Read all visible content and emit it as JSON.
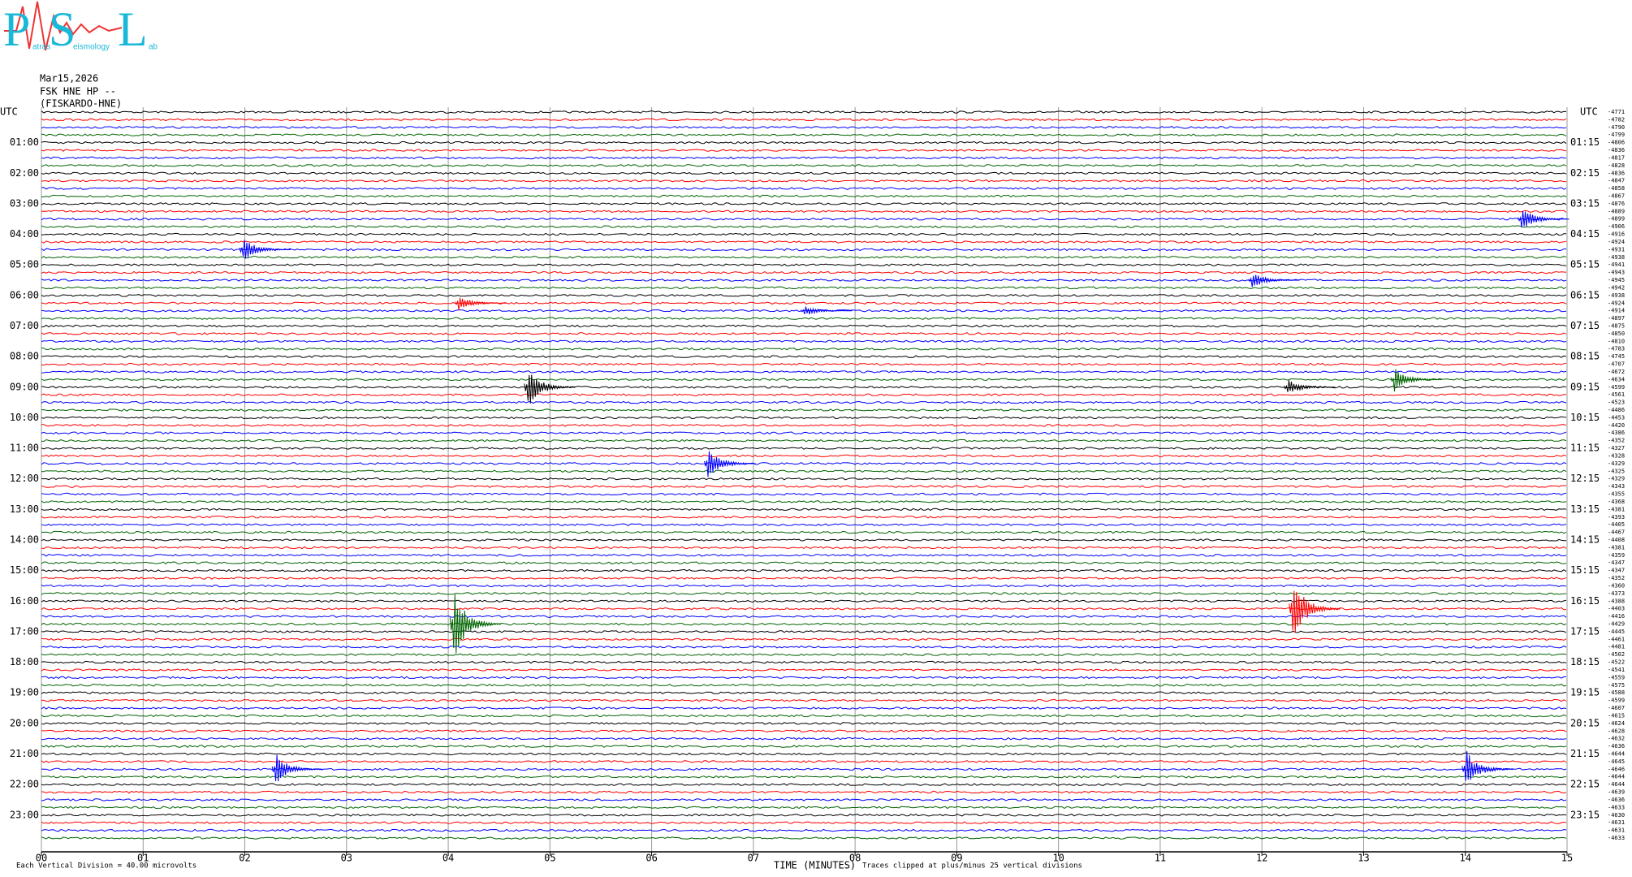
{
  "logo": {
    "letters": [
      "P",
      "S",
      "L"
    ],
    "words": [
      "atras",
      "eismology",
      "ab"
    ]
  },
  "chart_data": {
    "type": "helicorder",
    "header": [
      "Mar15,2026",
      "FSK HNE HP --",
      "(FISKARDO-HNE)"
    ],
    "xlabel": "TIME (MINUTES)",
    "scale_note": "Each Vertical Division =   40.00 microvolts",
    "clip_note": "Traces clipped at plus/minus 25 vertical divisions",
    "xlim": [
      0,
      15
    ],
    "xticks": [
      {
        "value": 0,
        "label": "00"
      },
      {
        "value": 1,
        "label": "01"
      },
      {
        "value": 2,
        "label": "02"
      },
      {
        "value": 3,
        "label": "03"
      },
      {
        "value": 4,
        "label": "04"
      },
      {
        "value": 5,
        "label": "05"
      },
      {
        "value": 6,
        "label": "06"
      },
      {
        "value": 7,
        "label": "07"
      },
      {
        "value": 8,
        "label": "08"
      },
      {
        "value": 9,
        "label": "09"
      },
      {
        "value": 10,
        "label": "10"
      },
      {
        "value": 11,
        "label": "11"
      },
      {
        "value": 12,
        "label": "12"
      },
      {
        "value": 13,
        "label": "13"
      },
      {
        "value": 14,
        "label": "14"
      },
      {
        "value": 15,
        "label": "15"
      }
    ],
    "grid": true,
    "trace_colors": [
      "#000000",
      "#ff0000",
      "#0000ff",
      "#006400"
    ],
    "left_labels": [
      "UTC",
      "01:00",
      "02:00",
      "03:00",
      "04:00",
      "05:00",
      "06:00",
      "07:00",
      "08:00",
      "09:00",
      "10:00",
      "11:00",
      "12:00",
      "13:00",
      "14:00",
      "15:00",
      "16:00",
      "17:00",
      "18:00",
      "19:00",
      "20:00",
      "21:00",
      "22:00",
      "23:00"
    ],
    "right_labels": [
      "UTC",
      "01:15",
      "02:15",
      "03:15",
      "04:15",
      "05:15",
      "06:15",
      "07:15",
      "08:15",
      "09:15",
      "10:15",
      "11:15",
      "12:15",
      "13:15",
      "14:15",
      "15:15",
      "16:15",
      "17:15",
      "18:15",
      "19:15",
      "20:15",
      "21:15",
      "22:15",
      "23:15"
    ],
    "offsets": [
      -4771,
      -4782,
      -4790,
      -4799,
      -4806,
      -4836,
      -4817,
      -4828,
      -4836,
      -4847,
      -4858,
      -4867,
      -4876,
      -4889,
      -4899,
      -4906,
      -4916,
      -4924,
      -4931,
      -4938,
      -4941,
      -4943,
      -4945,
      -4942,
      -4938,
      -4924,
      -4914,
      -4897,
      -4875,
      -4850,
      -4810,
      -4783,
      -4745,
      -4707,
      -4672,
      -4634,
      -4599,
      -4561,
      -4523,
      -4486,
      -4453,
      -4420,
      -4386,
      -4352,
      -4327,
      -4328,
      -4329,
      -4325,
      -4329,
      -4343,
      -4355,
      -4368,
      -4381,
      -4393,
      -4405,
      -4467,
      -4408,
      -4381,
      -4359,
      -4347,
      -4347,
      -4352,
      -4360,
      -4373,
      -4388,
      -4403,
      -4416,
      -4429,
      -4445,
      -4461,
      -4481,
      -4502,
      -4522,
      -4541,
      -4559,
      -4575,
      -4588,
      -4599,
      -4607,
      -4615,
      -4624,
      -4628,
      -4632,
      -4636,
      -4644,
      -4645,
      -4646,
      -4644,
      -4644,
      -4639,
      -4636,
      -4633,
      -4630,
      -4631,
      -4631,
      -4633
    ],
    "events": [
      {
        "row": 14,
        "minute": 14.55,
        "amplitude": 1.5
      },
      {
        "row": 18,
        "minute": 1.98,
        "amplitude": 1.5
      },
      {
        "row": 22,
        "minute": 11.9,
        "amplitude": 1
      },
      {
        "row": 25,
        "minute": 4.1,
        "amplitude": 1
      },
      {
        "row": 26,
        "minute": 7.5,
        "amplitude": 0.7
      },
      {
        "row": 35,
        "minute": 13.3,
        "amplitude": 1.5
      },
      {
        "row": 36,
        "minute": 12.25,
        "amplitude": 1
      },
      {
        "row": 36,
        "minute": 4.78,
        "amplitude": 2.5
      },
      {
        "row": 46,
        "minute": 6.55,
        "amplitude": 2
      },
      {
        "row": 65,
        "minute": 12.3,
        "amplitude": 4
      },
      {
        "row": 67,
        "minute": 4.05,
        "amplitude": 4.5
      },
      {
        "row": 86,
        "minute": 14.0,
        "amplitude": 2.5
      },
      {
        "row": 86,
        "minute": 2.3,
        "amplitude": 2
      }
    ]
  }
}
